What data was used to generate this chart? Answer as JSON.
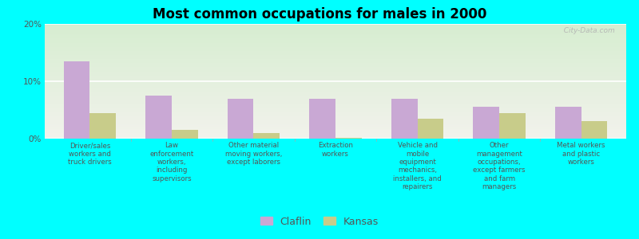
{
  "title": "Most common occupations for males in 2000",
  "categories": [
    "Driver/sales\nworkers and\ntruck drivers",
    "Law\nenforcement\nworkers,\nincluding\nsupervisors",
    "Other material\nmoving workers,\nexcept laborers",
    "Extraction\nworkers",
    "Vehicle and\nmobile\nequipment\nmechanics,\ninstallers, and\nrepairers",
    "Other\nmanagement\noccupations,\nexcept farmers\nand farm\nmanagers",
    "Metal workers\nand plastic\nworkers"
  ],
  "claflin_values": [
    13.5,
    7.5,
    7.0,
    7.0,
    7.0,
    5.5,
    5.5
  ],
  "kansas_values": [
    4.5,
    1.5,
    1.0,
    0.2,
    3.5,
    4.5,
    3.0
  ],
  "claflin_color": "#c9a8d4",
  "kansas_color": "#c8cc8a",
  "background_color": "#00ffff",
  "grad_top": "#d6edd0",
  "grad_bottom": "#f2f2ec",
  "ylim": [
    0,
    20
  ],
  "yticks": [
    0,
    10,
    20
  ],
  "ytick_labels": [
    "0%",
    "10%",
    "20%"
  ],
  "bar_width": 0.32,
  "legend_claflin": "Claflin",
  "legend_kansas": "Kansas",
  "watermark": "  City-Data.com"
}
